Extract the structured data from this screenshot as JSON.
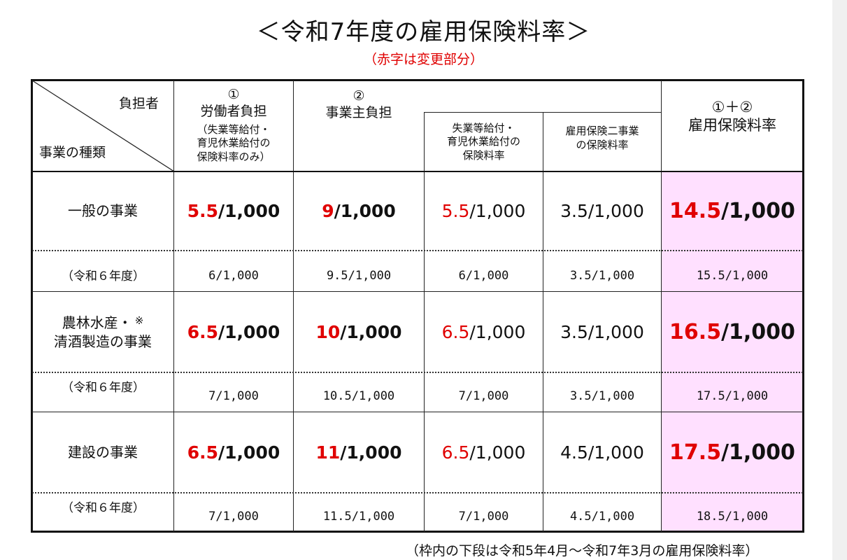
{
  "title": "＜令和7年度の雇用保険料率＞",
  "subtitle": "（赤字は変更部分）",
  "header": {
    "corner_top": "負担者",
    "corner_bottom": "事業の種類",
    "col1_num": "①",
    "col1_title": "労働者負担",
    "col1_note_1": "（失業等給付・",
    "col1_note_2": "育児休業給付の",
    "col1_note_3": "保険料率のみ）",
    "col2_num": "②",
    "col2_title": "事業主負担",
    "col3_line1": "失業等給付・",
    "col3_line2": "育児休業給付の",
    "col3_line3": "保険料率",
    "col4_line1": "雇用保険二事業",
    "col4_line2": "の保険料率",
    "col5_num": "①＋②",
    "col5_title": "雇用保険料率"
  },
  "rows": [
    {
      "label": "一般の事業",
      "cells": [
        {
          "red": "5.5",
          "rest": "/1,000"
        },
        {
          "red": "9",
          "rest": "/1,000"
        },
        {
          "red": "5.5",
          "rest": "/1,000"
        },
        {
          "red": "",
          "rest": "3.5/1,000"
        },
        {
          "red": "14.5",
          "rest": "/1,000"
        }
      ],
      "prev_label": "（令和６年度）",
      "prev": [
        "6/1,000",
        "9.5/1,000",
        "6/1,000",
        "3.5/1,000",
        "15.5/1,000"
      ]
    },
    {
      "label_line1": "農林水産・",
      "label_mark": "※",
      "label_line2": "清酒製造の事業",
      "cells": [
        {
          "red": "6.5",
          "rest": "/1,000"
        },
        {
          "red": "10",
          "rest": "/1,000"
        },
        {
          "red": "6.5",
          "rest": "/1,000"
        },
        {
          "red": "",
          "rest": "3.5/1,000"
        },
        {
          "red": "16.5",
          "rest": "/1,000"
        }
      ],
      "prev_label": "（令和６年度）",
      "prev": [
        "7/1,000",
        "10.5/1,000",
        "7/1,000",
        "3.5/1,000",
        "17.5/1,000"
      ]
    },
    {
      "label": "建設の事業",
      "cells": [
        {
          "red": "6.5",
          "rest": "/1,000"
        },
        {
          "red": "11",
          "rest": "/1,000"
        },
        {
          "red": "6.5",
          "rest": "/1,000"
        },
        {
          "red": "",
          "rest": "4.5/1,000"
        },
        {
          "red": "17.5",
          "rest": "/1,000"
        }
      ],
      "prev_label": "（令和６年度）",
      "prev": [
        "7/1,000",
        "11.5/1,000",
        "7/1,000",
        "4.5/1,000",
        "18.5/1,000"
      ]
    }
  ],
  "footnote": "（枠内の下段は令和5年4月～令和7年3月の雇用保険料率）",
  "colors": {
    "red": "#e00000",
    "pink_column": "#ffe0ff"
  }
}
